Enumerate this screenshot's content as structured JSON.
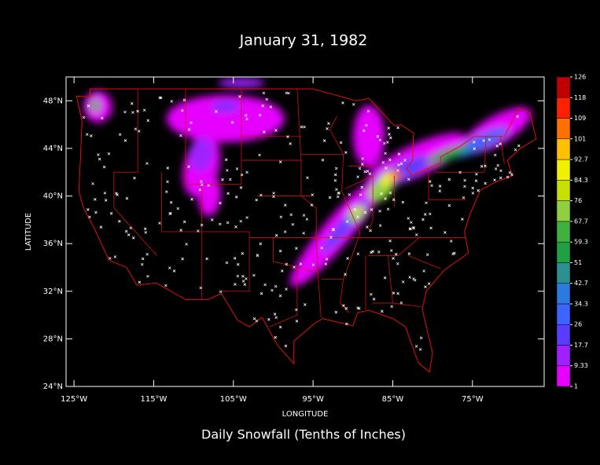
{
  "chart_data": {
    "type": "map",
    "title": "January 31, 1982",
    "subtitle": "Daily Snowfall (Tenths of Inches)",
    "x_label": "LONGITUDE",
    "y_label": "LATITUDE",
    "xlim": [
      -126,
      -66
    ],
    "ylim": [
      24,
      50
    ],
    "xticks": [
      {
        "value": -125,
        "label": "125°W"
      },
      {
        "value": -115,
        "label": "115°W"
      },
      {
        "value": -105,
        "label": "105°W"
      },
      {
        "value": -95,
        "label": "95°W"
      },
      {
        "value": -85,
        "label": "85°W"
      },
      {
        "value": -75,
        "label": "75°W"
      }
    ],
    "yticks": [
      {
        "value": 24,
        "label": "24°N"
      },
      {
        "value": 28,
        "label": "28°N"
      },
      {
        "value": 32,
        "label": "32°N"
      },
      {
        "value": 36,
        "label": "36°N"
      },
      {
        "value": 40,
        "label": "40°N"
      },
      {
        "value": 44,
        "label": "44°N"
      },
      {
        "value": 48,
        "label": "48°N"
      }
    ],
    "colorbar": {
      "levels": [
        1,
        9.33,
        17.7,
        26,
        34.3,
        42.7,
        51,
        59.3,
        67.7,
        76,
        84.3,
        92.7,
        101,
        109,
        118,
        126
      ],
      "colors": [
        "#e600ff",
        "#a020ff",
        "#5a3cff",
        "#3c64ff",
        "#2a7ae0",
        "#2a9090",
        "#20a040",
        "#40b040",
        "#90d040",
        "#c8e000",
        "#f0f000",
        "#ffc000",
        "#ff7000",
        "#ff2000",
        "#c00000"
      ]
    }
  }
}
